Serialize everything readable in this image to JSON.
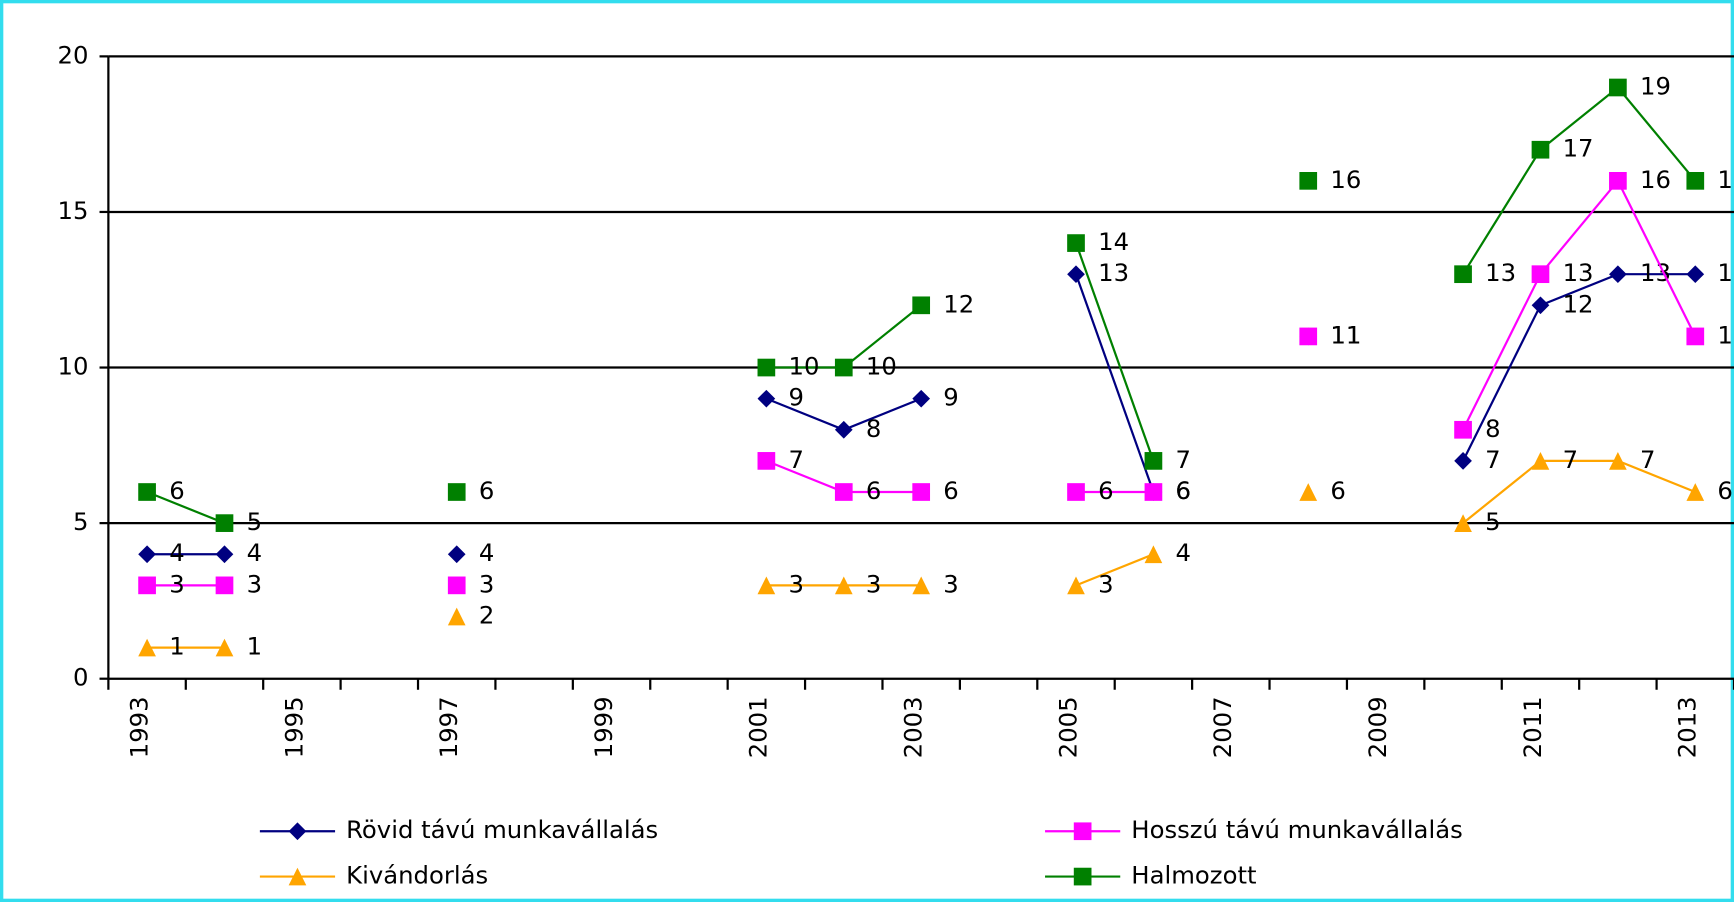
{
  "chart_data": {
    "type": "line",
    "categories": [
      "1993",
      null,
      "1995",
      null,
      "1997",
      null,
      "1999",
      null,
      "2001",
      null,
      "2003",
      null,
      "2005",
      null,
      "2007",
      null,
      "2009",
      null,
      "2011",
      null,
      "2013"
    ],
    "series": [
      {
        "name": "Rövid távú munkavállalás",
        "color": "#000080",
        "marker": "diamond",
        "values": [
          4,
          4,
          null,
          null,
          4,
          null,
          null,
          null,
          9,
          8,
          9,
          null,
          13,
          6,
          null,
          11,
          null,
          7,
          12,
          13,
          13
        ]
      },
      {
        "name": "Hosszú távú munkavállalás",
        "color": "#ff00ff",
        "marker": "square",
        "values": [
          3,
          3,
          null,
          null,
          3,
          null,
          null,
          null,
          7,
          6,
          6,
          null,
          6,
          6,
          null,
          11,
          null,
          8,
          13,
          16,
          11
        ]
      },
      {
        "name": "Kivándorlás",
        "color": "#ffa500",
        "marker": "triangle",
        "values": [
          1,
          1,
          null,
          null,
          2,
          null,
          null,
          null,
          3,
          3,
          3,
          null,
          3,
          4,
          null,
          6,
          null,
          5,
          7,
          7,
          6
        ]
      },
      {
        "name": "Halmozott",
        "color": "#008000",
        "marker": "square",
        "values": [
          6,
          5,
          null,
          null,
          6,
          null,
          null,
          null,
          10,
          10,
          12,
          null,
          14,
          7,
          null,
          16,
          null,
          13,
          17,
          19,
          16
        ]
      }
    ],
    "ylim": [
      0,
      20
    ],
    "yticks": [
      0,
      5,
      10,
      15,
      20
    ],
    "grid": true
  }
}
